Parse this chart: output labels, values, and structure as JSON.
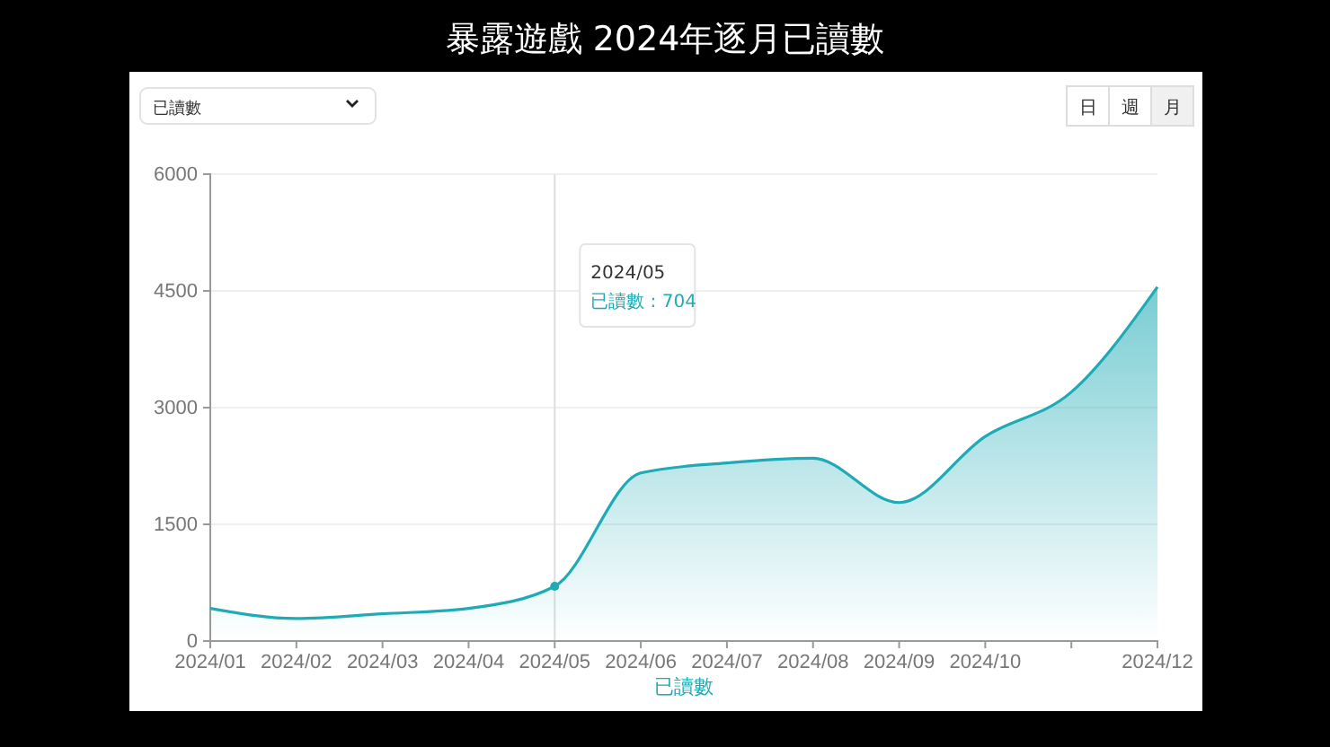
{
  "chart_data": {
    "type": "area",
    "title": "暴露遊戲 2024年逐月已讀數",
    "categories": [
      "2024/01",
      "2024/02",
      "2024/03",
      "2024/04",
      "2024/05",
      "2024/06",
      "2024/07",
      "2024/08",
      "2024/09",
      "2024/10",
      null,
      "2024/12"
    ],
    "series": [
      {
        "name": "已讀數",
        "color": "#1fabb6",
        "values": [
          420,
          290,
          350,
          420,
          704,
          2160,
          2290,
          2350,
          1780,
          2630,
          3200,
          4550
        ]
      }
    ],
    "ylim": [
      0,
      6000
    ],
    "yticks": [
      0,
      1500,
      3000,
      4500,
      6000
    ],
    "grid": "y",
    "legend": "bottom",
    "marker": "none",
    "ref_lines": [
      {
        "axis": "x",
        "value": "2024/05",
        "color": "#dddddd"
      }
    ],
    "annotations": [
      "已讀數",
      "日",
      "週",
      "月",
      "已讀數 : 704"
    ]
  }
}
